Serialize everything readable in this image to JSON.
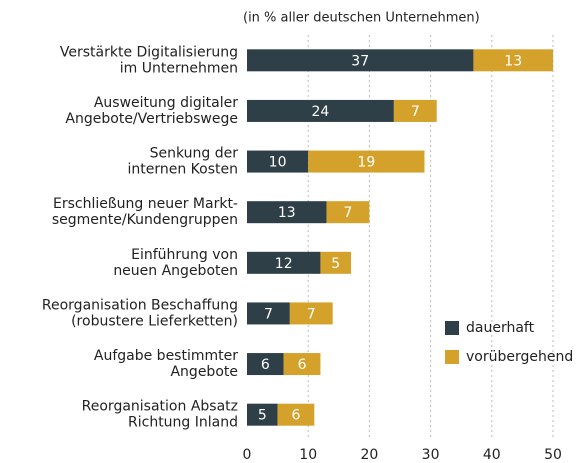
{
  "chart_data": {
    "type": "stacked_barh",
    "subtitle": "(in % aller deutschen Unternehmen)",
    "categories": [
      [
        "Verstärkte Digitalisierung",
        "im Unternehmen"
      ],
      [
        "Ausweitung digitaler",
        "Angebote/Vertriebswege"
      ],
      [
        "Senkung der",
        "internen Kosten"
      ],
      [
        "Erschließung neuer Markt-",
        "segmente/Kundengruppen"
      ],
      [
        "Einführung von",
        "neuen Angeboten"
      ],
      [
        "Reorganisation Beschaffung",
        "(robustere Lieferketten)"
      ],
      [
        "Aufgabe bestimmter",
        "Angebote"
      ],
      [
        "Reorganisation Absatz",
        "Richtung Inland"
      ]
    ],
    "series": [
      {
        "name": "dauerhaft",
        "color": "#2e3f48",
        "values": [
          37,
          24,
          10,
          13,
          12,
          7,
          6,
          5
        ]
      },
      {
        "name": "vorübergehend",
        "color": "#d4a12a",
        "values": [
          13,
          7,
          19,
          7,
          5,
          7,
          6,
          6
        ]
      }
    ],
    "xlim": [
      0,
      50
    ],
    "xticks": [
      0,
      10,
      20,
      30,
      40,
      50
    ],
    "grid": true,
    "legend": "right"
  }
}
